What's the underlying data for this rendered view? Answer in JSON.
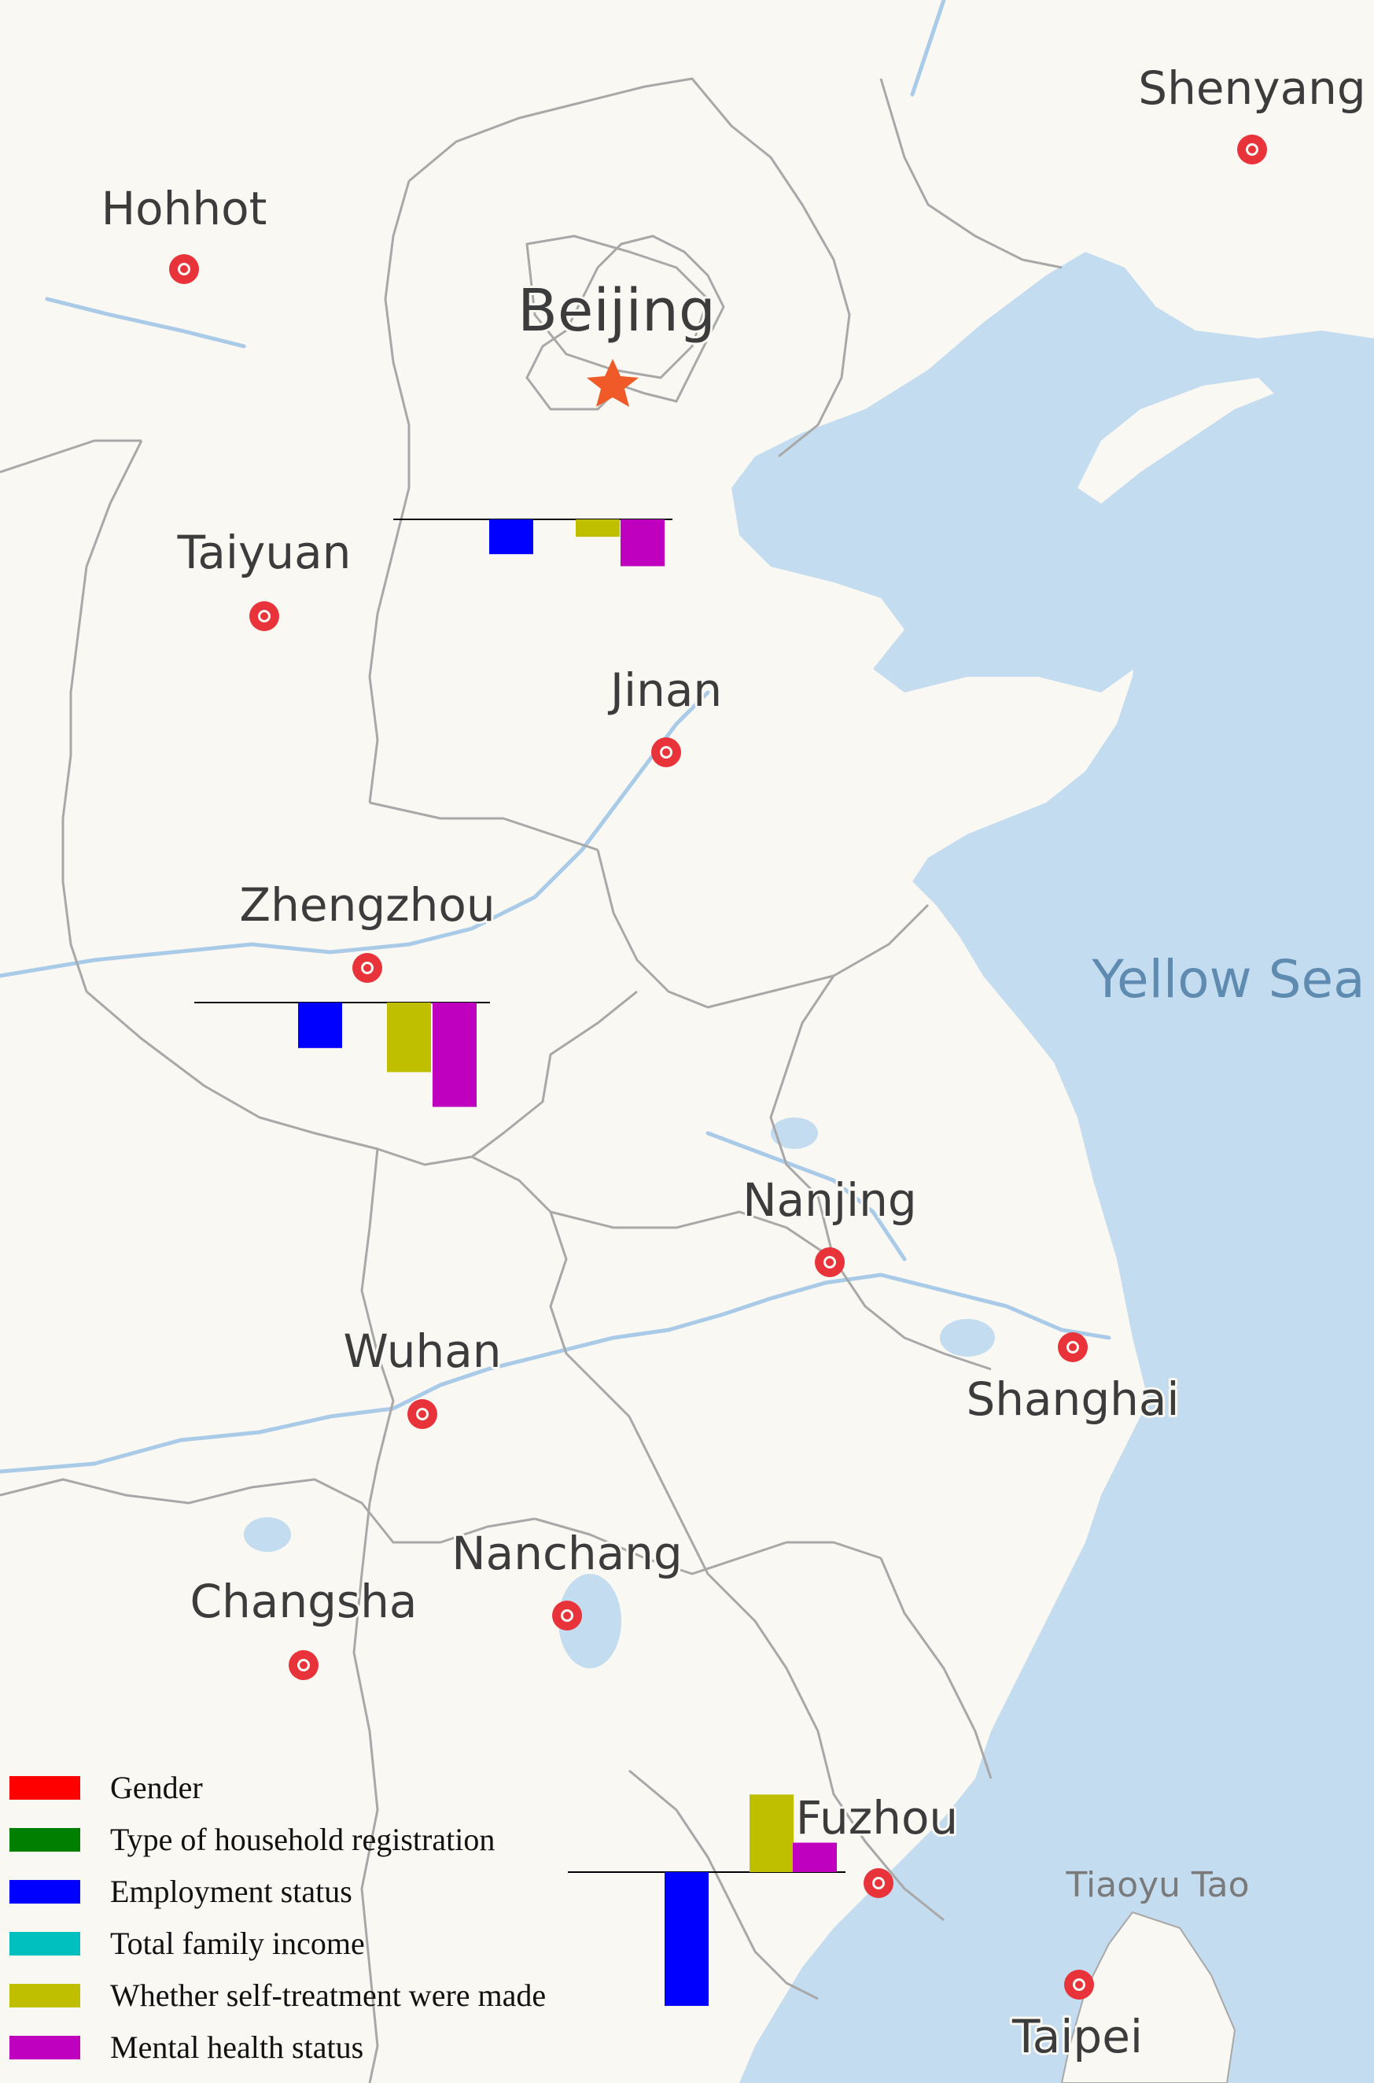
{
  "map": {
    "sea_label": "Yellow Sea",
    "islet_label": "Tiaoyu Tao",
    "capital": {
      "name": "Beijing"
    },
    "cities": [
      {
        "name": "Shenyang"
      },
      {
        "name": "Hohhot"
      },
      {
        "name": "Taiyuan"
      },
      {
        "name": "Jinan"
      },
      {
        "name": "Zhengzhou"
      },
      {
        "name": "Nanjing"
      },
      {
        "name": "Shanghai"
      },
      {
        "name": "Wuhan"
      },
      {
        "name": "Nanchang"
      },
      {
        "name": "Changsha"
      },
      {
        "name": "Fuzhou"
      },
      {
        "name": "Taipei"
      }
    ],
    "colors": {
      "land": "#faf8f3",
      "water": "#c4dcef",
      "border": "#a8a8a8",
      "river": "#a9cbe8",
      "city_marker": "#e8333a",
      "capital_star": "#f05a28"
    }
  },
  "legend": {
    "items": [
      {
        "label": "Gender",
        "color": "#ff0000"
      },
      {
        "label": "Type of household registration",
        "color": "#007f00"
      },
      {
        "label": "Employment status",
        "color": "#0000ff"
      },
      {
        "label": "Total family income",
        "color": "#00bfbf"
      },
      {
        "label": "Whether self-treatment were made",
        "color": "#bfbf00"
      },
      {
        "label": "Mental health status",
        "color": "#bf00bf"
      }
    ]
  },
  "chart_data": {
    "type": "bar",
    "note_units": "relative bar values; negative extends below baseline",
    "categories": [
      "Gender",
      "Type of household registration",
      "Employment status",
      "Total family income",
      "Whether self-treatment were made",
      "Mental health status"
    ],
    "groups": [
      {
        "location": "Beijing",
        "values": [
          0,
          0,
          -0.26,
          0,
          -0.13,
          -0.35
        ]
      },
      {
        "location": "Zhengzhou",
        "values": [
          0,
          0,
          -0.34,
          0,
          -0.52,
          -0.78
        ]
      },
      {
        "location": "Fuzhou",
        "values": [
          0,
          0,
          -1.0,
          0,
          0.58,
          0.22
        ]
      }
    ]
  }
}
